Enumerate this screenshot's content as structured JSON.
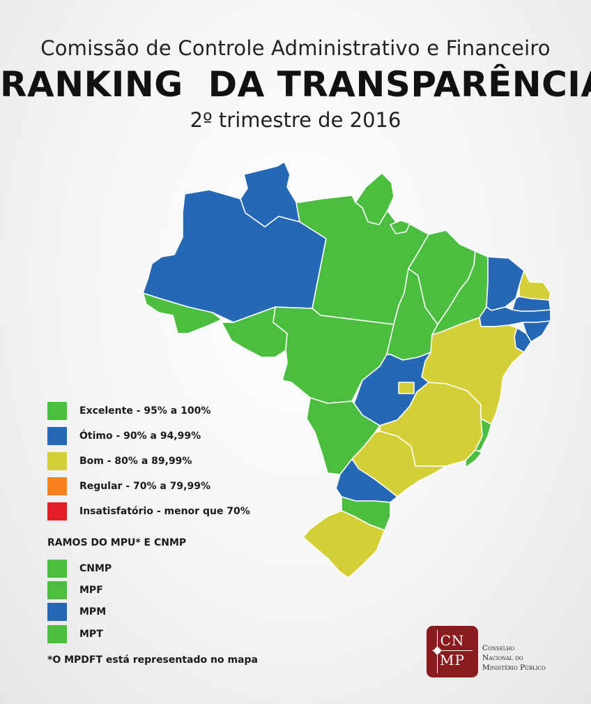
{
  "header": {
    "line1": "Comissão de Controle Administrativo e Financeiro",
    "line2": "RANKING  DA TRANSPARÊNCIA",
    "line3": "2º trimestre de 2016"
  },
  "colors": {
    "excelente": "#4bbd3f",
    "otimo": "#2568b5",
    "bom": "#d4cf36",
    "regular": "#f5821f",
    "insatisfatorio": "#e41e26"
  },
  "legend": [
    {
      "label": "Excelente - 95% a 100%",
      "color": "#4bbd3f"
    },
    {
      "label": "Ótimo - 90% a 94,99%",
      "color": "#2568b5"
    },
    {
      "label": "Bom - 80% a 89,99%",
      "color": "#d4cf36"
    },
    {
      "label": "Regular - 70% a 79,99%",
      "color": "#f5821f"
    },
    {
      "label": "Insatisfatório - menor que 70%",
      "color": "#e41e26"
    }
  ],
  "ramos": {
    "title": "RAMOS DO MPU* E CNMP",
    "items": [
      {
        "label": "CNMP",
        "color": "#4bbd3f"
      },
      {
        "label": "MPF",
        "color": "#4bbd3f"
      },
      {
        "label": "MPM",
        "color": "#2568b5"
      },
      {
        "label": "MPT",
        "color": "#4bbd3f"
      }
    ]
  },
  "note": "*O MPDFT está representado no mapa",
  "logo": {
    "mark_top": "CN",
    "mark_bottom": "MP",
    "name_line1": "Conselho",
    "name_line2": "Nacional do",
    "name_line3": "Ministério Público"
  },
  "map_states": {
    "AM": "otimo",
    "RR": "otimo",
    "AC": "excelente",
    "RO": "excelente",
    "AP": "excelente",
    "PA": "excelente",
    "MT": "excelente",
    "TO": "excelente",
    "MA": "excelente",
    "PI": "excelente",
    "CE": "otimo",
    "RN": "bom",
    "PB": "otimo",
    "PE": "otimo",
    "AL": "otimo",
    "SE": "otimo",
    "BA": "bom",
    "GO": "otimo",
    "DF": "bom",
    "MS": "excelente",
    "MG": "bom",
    "ES": "excelente",
    "RJ": "excelente",
    "SP": "bom",
    "PR": "otimo",
    "SC": "excelente",
    "RS": "bom"
  }
}
